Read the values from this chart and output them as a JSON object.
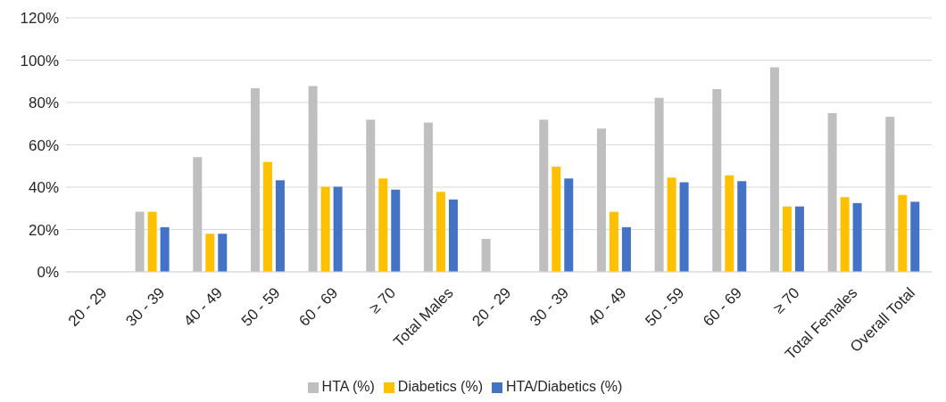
{
  "chart_data": {
    "type": "bar",
    "categories": [
      "20 - 29",
      "30 - 39",
      "40 - 49",
      "50 - 59",
      "60 - 69",
      "≥ 70",
      "Total Males",
      "20 - 29",
      "30 - 39",
      "40 - 49",
      "50 - 59",
      "60 - 69",
      "≥ 70",
      "Total Females",
      "Overall Total"
    ],
    "series": [
      {
        "name": "HTA (%)",
        "color": "#bfbfbf",
        "values": [
          0,
          28.4,
          54.2,
          86.7,
          87.8,
          71.9,
          70.5,
          15.6,
          71.9,
          67.7,
          82.2,
          86.3,
          96.6,
          75.0,
          73.3
        ]
      },
      {
        "name": "Diabetics (%)",
        "color": "#ffc000",
        "values": [
          0,
          28.4,
          18.0,
          51.9,
          40.2,
          44.1,
          37.8,
          0,
          49.7,
          28.4,
          44.5,
          45.6,
          30.9,
          35.3,
          36.3
        ]
      },
      {
        "name": "HTA/Diabetics (%)",
        "color": "#4472c4",
        "values": [
          0,
          21.1,
          18.0,
          43.3,
          40.2,
          38.8,
          34.2,
          0,
          44.1,
          21.1,
          42.3,
          42.8,
          30.9,
          32.5,
          33.1
        ]
      }
    ],
    "ylim": [
      0,
      120
    ],
    "yticks": [
      {
        "value": 0,
        "label": "0%"
      },
      {
        "value": 20,
        "label": "20%"
      },
      {
        "value": 40,
        "label": "40%"
      },
      {
        "value": 60,
        "label": "60%"
      },
      {
        "value": 80,
        "label": "80%"
      },
      {
        "value": 100,
        "label": "100%"
      },
      {
        "value": 120,
        "label": "120%"
      }
    ],
    "grid": "y",
    "legend": "bottom"
  }
}
